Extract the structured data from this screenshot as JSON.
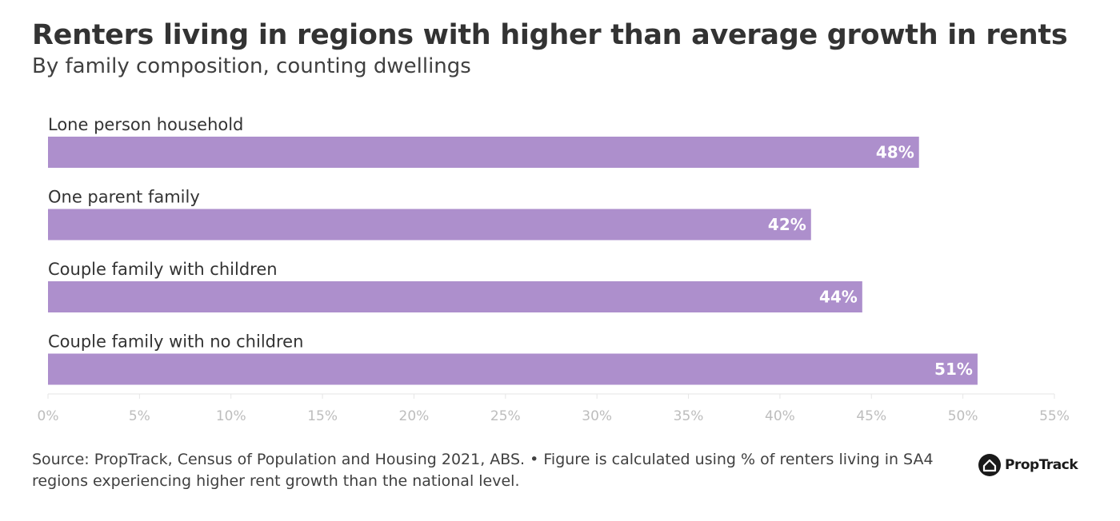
{
  "header": {
    "title": "Renters living in regions with higher than average growth in rents",
    "subtitle": "By family composition, counting dwellings"
  },
  "chart_data": {
    "type": "bar",
    "orientation": "horizontal",
    "categories": [
      "Lone person household",
      "One parent family",
      "Couple family with children",
      "Couple family with no children"
    ],
    "values": [
      47.6,
      41.7,
      44.5,
      50.8
    ],
    "data_labels": [
      "48%",
      "42%",
      "44%",
      "51%"
    ],
    "xlim": [
      0,
      55
    ],
    "xticks": [
      0,
      5,
      10,
      15,
      20,
      25,
      30,
      35,
      40,
      45,
      50,
      55
    ],
    "tick_labels": [
      "0%",
      "5%",
      "10%",
      "15%",
      "20%",
      "25%",
      "30%",
      "35%",
      "40%",
      "45%",
      "50%",
      "55%"
    ],
    "bar_color": "#ad8fcc",
    "grid": false,
    "legend": "none"
  },
  "footer": {
    "source": "Source: PropTrack, Census of Population and Housing 2021, ABS. • Figure is calculated using % of renters living in SA4 regions experiencing higher rent growth than the national level.",
    "logo_text": "PropTrack"
  }
}
